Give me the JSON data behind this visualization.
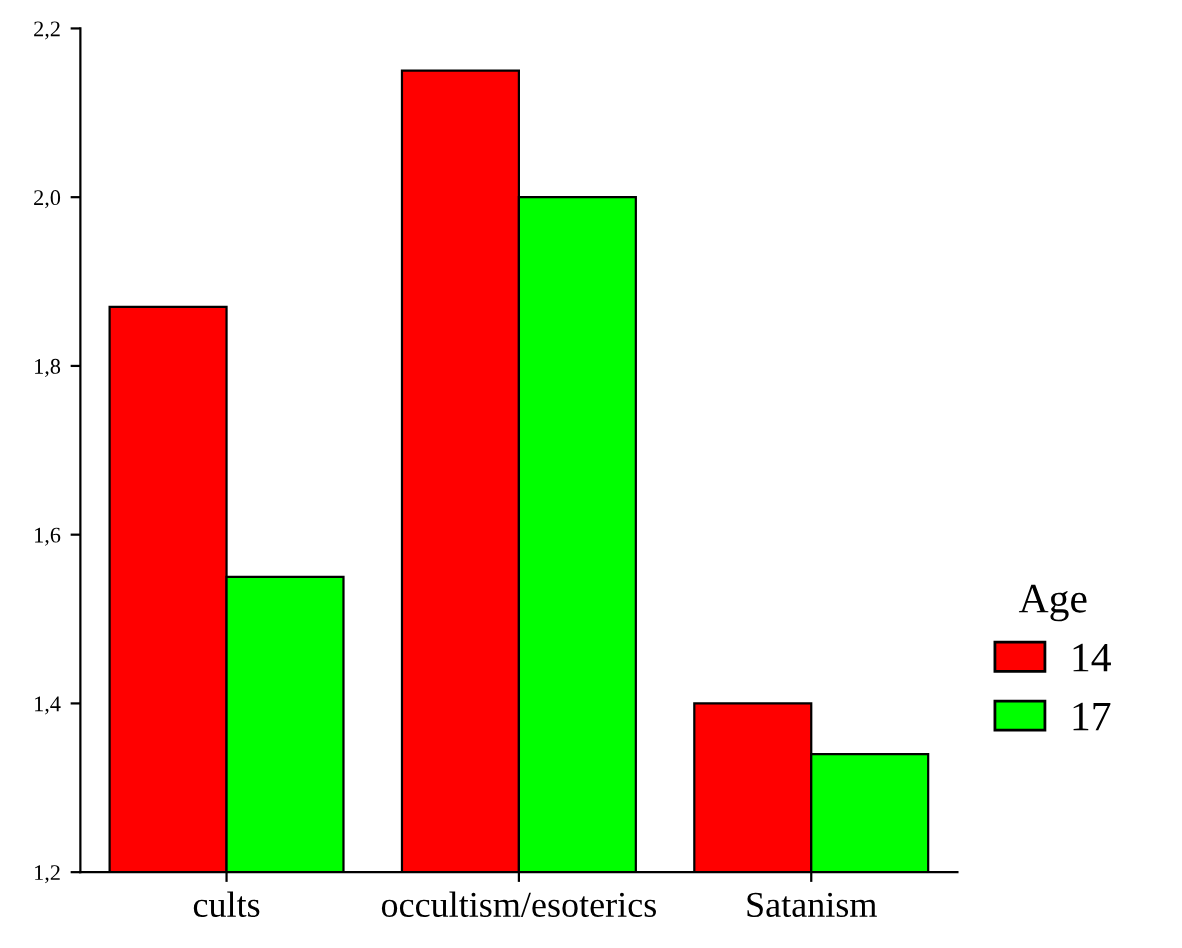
{
  "chart_data": {
    "type": "bar",
    "categories": [
      "cults",
      "occultism/esoterics",
      "Satanism"
    ],
    "series": [
      {
        "name": "14",
        "color": "#ff0000",
        "values": [
          1.87,
          2.15,
          1.4
        ]
      },
      {
        "name": "17",
        "color": "#00ff00",
        "values": [
          1.55,
          2.0,
          1.34
        ]
      }
    ],
    "ylim": [
      1.2,
      2.2
    ],
    "yticks": [
      {
        "value": 1.2,
        "label": "1,2"
      },
      {
        "value": 1.4,
        "label": "1,4"
      },
      {
        "value": 1.6,
        "label": "1,6"
      },
      {
        "value": 1.8,
        "label": "1,8"
      },
      {
        "value": 2.0,
        "label": "2,0"
      },
      {
        "value": 2.2,
        "label": "2,2"
      }
    ],
    "legend_title": "Age",
    "legend": "right",
    "grid": false
  }
}
